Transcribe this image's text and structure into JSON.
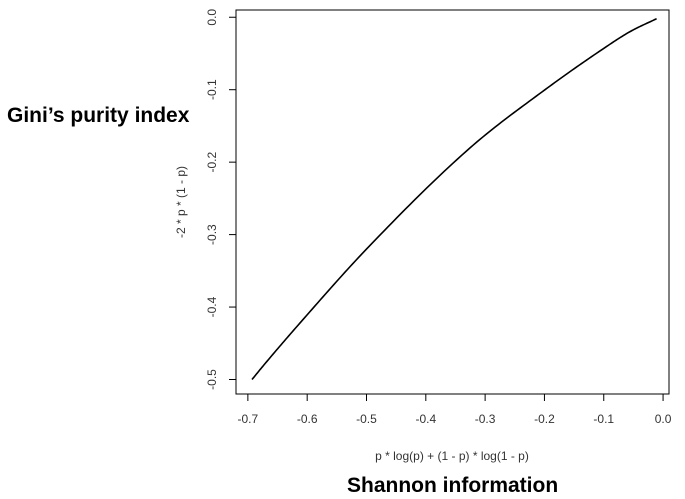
{
  "chart_data": {
    "type": "line",
    "xlabel": "p * log(p) + (1 - p) * log(1 - p)",
    "ylabel": "-2 * p * (1 - p)",
    "xlim": [
      -0.72,
      0.01
    ],
    "ylim": [
      -0.52,
      0.01
    ],
    "xticks": [
      "-0.7",
      "-0.6",
      "-0.5",
      "-0.4",
      "-0.3",
      "-0.2",
      "-0.1",
      "0.0"
    ],
    "yticks": [
      "-0.5",
      "-0.4",
      "-0.3",
      "-0.2",
      "-0.1",
      "0.0"
    ],
    "grid": false,
    "curve": {
      "x": [
        -0.693,
        -0.673,
        -0.61,
        -0.5,
        -0.325,
        -0.199,
        -0.1,
        -0.056,
        -0.0109
      ],
      "y": [
        -0.5,
        -0.48,
        -0.42,
        -0.32,
        -0.18,
        -0.1,
        -0.043,
        -0.02,
        -0.002
      ]
    }
  },
  "annotations": {
    "y_callout": "Gini’s purity index",
    "x_callout": "Shannon information"
  }
}
